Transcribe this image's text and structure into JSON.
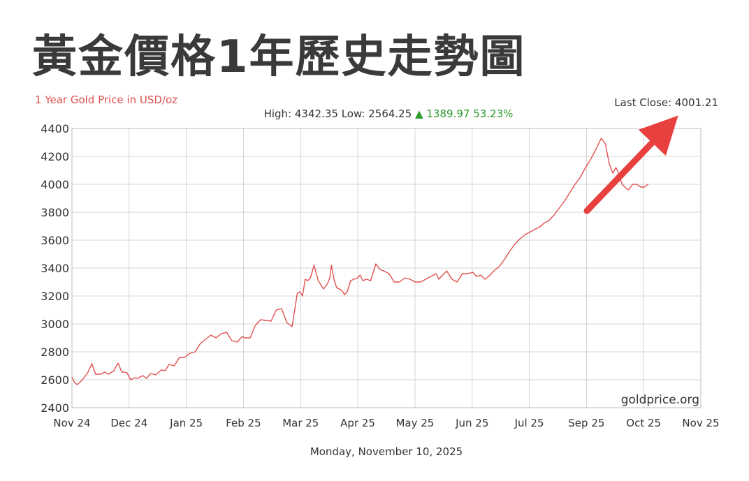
{
  "headline": "黃金價格1年歷史走勢圖",
  "chart_data": {
    "type": "line",
    "title": "1 Year Gold Price in USD/oz",
    "stats": {
      "high": "High: 4342.35",
      "low": "Low: 2564.25",
      "change_arrow": "▲",
      "change": "1389.97 53.23%"
    },
    "last_close": "Last Close: 4001.21",
    "watermark": "goldprice.org",
    "date": "Monday, November 10, 2025",
    "ylim": [
      2400,
      4400
    ],
    "yticks": [
      2400,
      2600,
      2800,
      3000,
      3200,
      3400,
      3600,
      3800,
      4000,
      4200,
      4400
    ],
    "xlim": [
      0,
      12
    ],
    "xticks": [
      "Nov 24",
      "Dec 24",
      "Jan 25",
      "Feb 25",
      "Mar 25",
      "Apr 25",
      "May 25",
      "Jun 25",
      "Jul 25",
      "Sep 25",
      "Oct 25",
      "Nov 25"
    ],
    "grid": true,
    "series": [
      {
        "color": "#e05050",
        "x": [
          0.0,
          0.05,
          0.1,
          0.2,
          0.3,
          0.38,
          0.45,
          0.55,
          0.62,
          0.7,
          0.8,
          0.88,
          0.95,
          1.0,
          1.05,
          1.12,
          1.2,
          1.25,
          1.35,
          1.42,
          1.5,
          1.6,
          1.7,
          1.78,
          1.85,
          1.95,
          2.05,
          2.15,
          2.25,
          2.35,
          2.45,
          2.55,
          2.65,
          2.75,
          2.85,
          2.95,
          3.05,
          3.15,
          3.25,
          3.3,
          3.4,
          3.5,
          3.6,
          3.7,
          3.8,
          3.9,
          4.0,
          4.1,
          4.2,
          4.3,
          4.35,
          4.4,
          4.45,
          4.5,
          4.55,
          4.62,
          4.7,
          4.8,
          4.88,
          4.92,
          4.95,
          5.0,
          5.05,
          5.15,
          5.2,
          5.25,
          5.32,
          5.38,
          5.45,
          5.5,
          5.55,
          5.62,
          5.7,
          5.8,
          5.88,
          5.95,
          6.05,
          6.15,
          6.25,
          6.35,
          6.45,
          6.55,
          6.65,
          6.75,
          6.85,
          6.95,
          7.0,
          7.05,
          7.15,
          7.25,
          7.35,
          7.45,
          7.55,
          7.65,
          7.72,
          7.8,
          7.88,
          7.95,
          8.05,
          8.15,
          8.25,
          8.35,
          8.45,
          8.55,
          8.65,
          8.75,
          8.85,
          8.95,
          9.0,
          9.1,
          9.2,
          9.3,
          9.4,
          9.5,
          9.6,
          9.7,
          9.8,
          9.9,
          10.0,
          10.1,
          10.18,
          10.25,
          10.32,
          10.38,
          10.42,
          10.45,
          10.5,
          10.55,
          10.62,
          10.7,
          10.78,
          10.85,
          10.92,
          11.0
        ],
        "values": [
          2620,
          2580,
          2565,
          2600,
          2650,
          2715,
          2640,
          2640,
          2655,
          2640,
          2665,
          2720,
          2655,
          2655,
          2650,
          2600,
          2615,
          2610,
          2630,
          2610,
          2645,
          2635,
          2670,
          2665,
          2710,
          2700,
          2760,
          2760,
          2790,
          2800,
          2860,
          2890,
          2920,
          2900,
          2930,
          2940,
          2880,
          2870,
          2910,
          2900,
          2900,
          2990,
          3030,
          3025,
          3020,
          3100,
          3110,
          3010,
          2980,
          3220,
          3230,
          3200,
          3320,
          3310,
          3330,
          3420,
          3310,
          3250,
          3290,
          3330,
          3420,
          3320,
          3260,
          3240,
          3210,
          3230,
          3310,
          3320,
          3330,
          3350,
          3310,
          3320,
          3310,
          3430,
          3390,
          3380,
          3360,
          3300,
          3300,
          3330,
          3320,
          3300,
          3300,
          3320,
          3340,
          3360,
          3320,
          3340,
          3380,
          3320,
          3300,
          3360,
          3360,
          3370,
          3340,
          3350,
          3320,
          3340,
          3380,
          3410,
          3460,
          3520,
          3570,
          3610,
          3640,
          3660,
          3680,
          3700,
          3720,
          3740,
          3780,
          3830,
          3880,
          3940,
          4000,
          4050,
          4120,
          4180,
          4250,
          4330,
          4290,
          4150,
          4080,
          4120,
          4090,
          4050,
          4000,
          3980,
          3960,
          4000,
          4000,
          3980,
          3980,
          4001.21
        ]
      }
    ]
  }
}
